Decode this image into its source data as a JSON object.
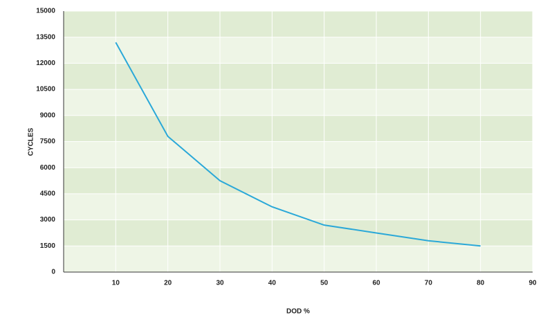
{
  "chart_data": {
    "type": "line",
    "x_label": "DOD %",
    "y_label": "CYCLES",
    "x": [
      10,
      20,
      30,
      40,
      50,
      60,
      70,
      80
    ],
    "series": [
      {
        "name": "Cycles",
        "color": "#2aa8d8",
        "values": [
          13200,
          7800,
          5250,
          3750,
          2700,
          2250,
          1800,
          1500
        ]
      }
    ],
    "xlim": [
      0,
      90
    ],
    "xticks": [
      10,
      20,
      30,
      40,
      50,
      60,
      70,
      80,
      90
    ],
    "ylim": [
      0,
      15000
    ],
    "yticks": [
      0,
      1500,
      3000,
      4500,
      6000,
      7500,
      9000,
      10500,
      12000,
      13500,
      15000
    ],
    "band_colors": [
      "#eef5e6",
      "#e0ecd3"
    ],
    "grid": true
  }
}
